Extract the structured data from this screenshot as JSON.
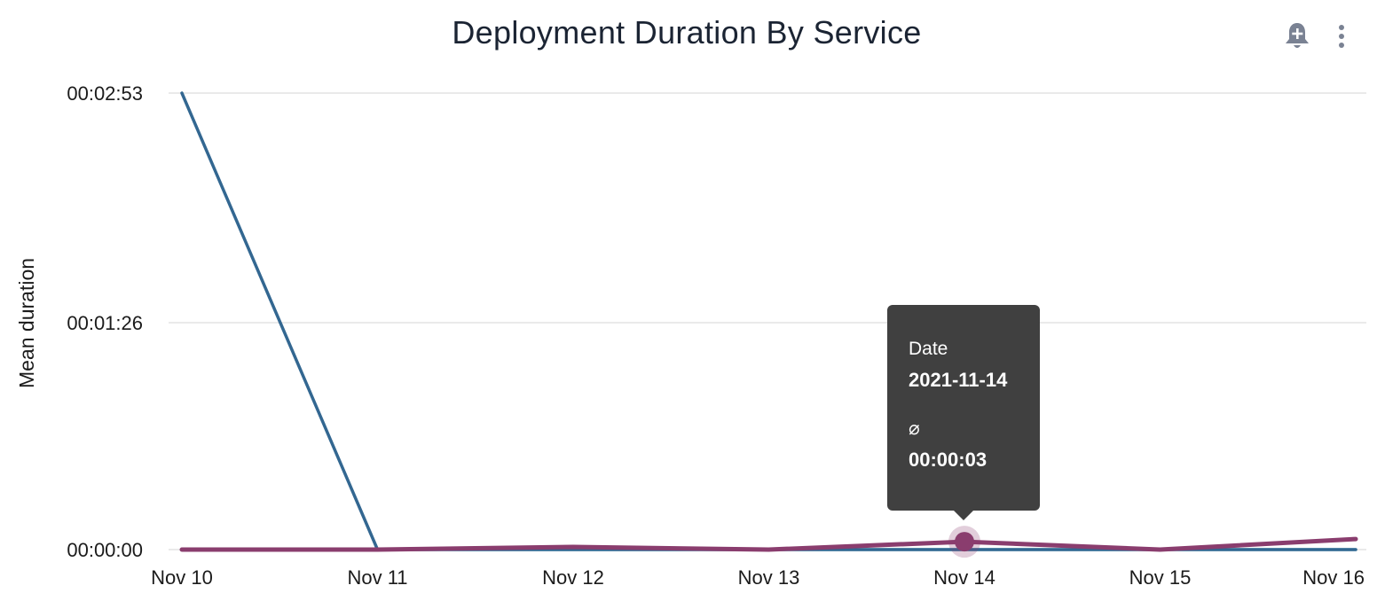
{
  "chart_data": {
    "type": "line",
    "title": "Deployment Duration By Service",
    "ylabel": "Mean duration",
    "xlabel": "",
    "x": [
      "Nov 10",
      "Nov 11",
      "Nov 12",
      "Nov 13",
      "Nov 14",
      "Nov 15",
      "Nov 16"
    ],
    "yticks": [
      {
        "value": 0,
        "label": "00:00:00"
      },
      {
        "value": 86,
        "label": "00:01:26"
      },
      {
        "value": 173,
        "label": "00:02:53"
      }
    ],
    "ylim": [
      0,
      173
    ],
    "y_unit": "seconds",
    "grid": true,
    "series": [
      {
        "color": "#336791",
        "values": [
          173,
          0,
          0,
          0,
          0,
          0,
          0
        ]
      },
      {
        "color": "#8a3d6e",
        "values": [
          0,
          0,
          1,
          0,
          3,
          0,
          4
        ]
      },
      {
        "color": "#7ccbd4",
        "values": [
          0,
          0,
          0,
          0,
          0,
          0,
          0
        ]
      }
    ]
  },
  "tooltip": {
    "date_label": "Date",
    "date_value": "2021-11-14",
    "metric_symbol": "⌀",
    "metric_value": "00:00:03",
    "highlight_index": 4,
    "highlight_series": 1
  },
  "icons": {
    "alert": "bell-plus-icon",
    "more": "more-vertical-icon"
  }
}
